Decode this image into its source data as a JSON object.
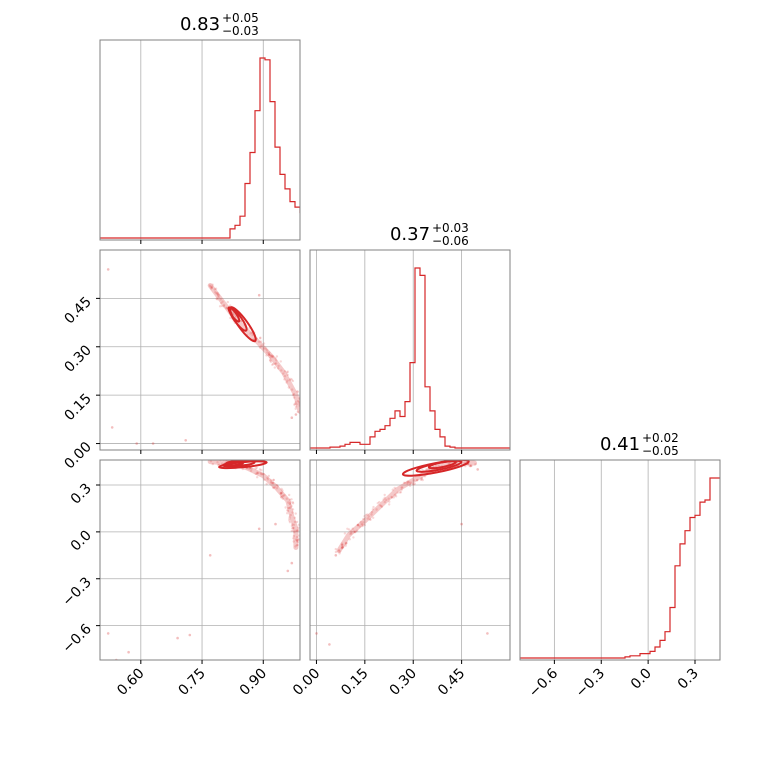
{
  "chart_data": {
    "type": "scatter",
    "subtype": "corner-plot",
    "color": "#d62728",
    "grid": true,
    "parameters": [
      {
        "median": "0.83",
        "plus": "+0.05",
        "minus": "−0.03"
      },
      {
        "median": "0.37",
        "plus": "+0.03",
        "minus": "−0.06"
      },
      {
        "median": "0.41",
        "plus": "+0.02",
        "minus": "−0.05"
      }
    ],
    "ranges": [
      [
        0.5,
        0.99
      ],
      [
        -0.02,
        0.6
      ],
      [
        -0.82,
        0.46
      ]
    ],
    "ticks": [
      [
        0.6,
        0.75,
        0.9
      ],
      [
        0.0,
        0.15,
        0.3,
        0.45
      ],
      [
        -0.6,
        -0.3,
        0.0,
        0.3
      ]
    ],
    "tick_labels": [
      [
        "0.60",
        "0.75",
        "0.90"
      ],
      [
        "0.00",
        "0.15",
        "0.30",
        "0.45"
      ],
      [
        "−0.6",
        "−0.3",
        "0.0",
        "0.3"
      ]
    ],
    "histograms": [
      {
        "bin_start": 0.5,
        "bin_width": 0.01225,
        "values": [
          0,
          0,
          0,
          0,
          0,
          0,
          0,
          0,
          0,
          0,
          0,
          0,
          0,
          0,
          0,
          0,
          0,
          0,
          0,
          0,
          0,
          0,
          0,
          0,
          0,
          0,
          0.05,
          0.07,
          0.12,
          0.3,
          0.47,
          0.7,
          0.99,
          0.98,
          0.75,
          0.5,
          0.35,
          0.27,
          0.2,
          0.17,
          0.14,
          0.12,
          0.1,
          0.05,
          0.03,
          0.02,
          0.05,
          0.07,
          0.07,
          0.09
        ]
      },
      {
        "bin_start": -0.02,
        "bin_width": 0.0155,
        "values": [
          0,
          0,
          0,
          0,
          0.005,
          0.005,
          0.01,
          0.02,
          0.03,
          0.03,
          0.02,
          0.02,
          0.06,
          0.09,
          0.1,
          0.12,
          0.16,
          0.2,
          0.17,
          0.25,
          0.46,
          0.97,
          0.93,
          0.33,
          0.2,
          0.1,
          0.06,
          0.01,
          0.005,
          0,
          0,
          0,
          0,
          0,
          0,
          0,
          0,
          0,
          0,
          0
        ]
      },
      {
        "bin_start": -0.82,
        "bin_width": 0.032,
        "values": [
          0,
          0,
          0,
          0,
          0,
          0,
          0,
          0,
          0,
          0,
          0,
          0,
          0,
          0,
          0,
          0,
          0,
          0,
          0,
          0,
          0,
          0.005,
          0.01,
          0.01,
          0.02,
          0.02,
          0.03,
          0.05,
          0.08,
          0.12,
          0.23,
          0.42,
          0.52,
          0.58,
          0.64,
          0.65,
          0.71,
          0.72,
          0.82,
          0.82
        ]
      }
    ],
    "pairs": [
      {
        "x_param": 0,
        "y_param": 1,
        "ridge": [
          [
            0.77,
            0.49
          ],
          [
            0.8,
            0.44
          ],
          [
            0.83,
            0.39
          ],
          [
            0.86,
            0.35
          ],
          [
            0.89,
            0.31
          ],
          [
            0.92,
            0.27
          ],
          [
            0.95,
            0.22
          ],
          [
            0.98,
            0.15
          ],
          [
            0.99,
            0.1
          ]
        ],
        "contours": [
          {
            "cx": 0.85,
            "cy": 0.37,
            "sx": 0.06,
            "sy": 0.012,
            "angle_deg": -60
          },
          {
            "cx": 0.838,
            "cy": 0.385,
            "sx": 0.04,
            "sy": 0.009,
            "angle_deg": -60
          },
          {
            "cx": 0.828,
            "cy": 0.4,
            "sx": 0.025,
            "sy": 0.006,
            "angle_deg": -60
          }
        ],
        "outliers": [
          [
            0.52,
            0.54
          ],
          [
            0.53,
            0.05
          ],
          [
            0.59,
            0.0
          ],
          [
            0.79,
            0.46
          ],
          [
            0.89,
            0.46
          ],
          [
            0.99,
            0.14
          ],
          [
            0.98,
            0.09
          ],
          [
            0.97,
            0.08
          ],
          [
            0.63,
            0.0
          ],
          [
            0.71,
            0.01
          ]
        ]
      },
      {
        "x_param": 0,
        "y_param": 2,
        "ridge": [
          [
            0.77,
            0.45
          ],
          [
            0.82,
            0.44
          ],
          [
            0.86,
            0.41
          ],
          [
            0.9,
            0.36
          ],
          [
            0.93,
            0.29
          ],
          [
            0.96,
            0.2
          ],
          [
            0.97,
            0.1
          ],
          [
            0.98,
            0.02
          ],
          [
            0.98,
            -0.1
          ]
        ],
        "contours": [
          {
            "cx": 0.85,
            "cy": 0.43,
            "sx": 0.06,
            "sy": 0.014,
            "angle_deg": 14
          },
          {
            "cx": 0.84,
            "cy": 0.435,
            "sx": 0.04,
            "sy": 0.01,
            "angle_deg": 14
          },
          {
            "cx": 0.83,
            "cy": 0.44,
            "sx": 0.022,
            "sy": 0.007,
            "angle_deg": 14
          }
        ],
        "outliers": [
          [
            0.52,
            -0.65
          ],
          [
            0.54,
            -0.82
          ],
          [
            0.57,
            -0.77
          ],
          [
            0.69,
            -0.68
          ],
          [
            0.72,
            -0.66
          ],
          [
            0.77,
            -0.15
          ],
          [
            0.89,
            0.02
          ],
          [
            0.96,
            -0.25
          ],
          [
            0.97,
            -0.2
          ],
          [
            0.93,
            0.05
          ]
        ]
      },
      {
        "x_param": 1,
        "y_param": 2,
        "ridge": [
          [
            0.07,
            -0.12
          ],
          [
            0.1,
            -0.02
          ],
          [
            0.15,
            0.07
          ],
          [
            0.2,
            0.17
          ],
          [
            0.25,
            0.27
          ],
          [
            0.3,
            0.33
          ],
          [
            0.35,
            0.39
          ],
          [
            0.4,
            0.43
          ],
          [
            0.45,
            0.45
          ],
          [
            0.49,
            0.44
          ]
        ],
        "contours": [
          {
            "cx": 0.37,
            "cy": 0.41,
            "sx": 0.11,
            "sy": 0.025,
            "angle_deg": 22
          },
          {
            "cx": 0.38,
            "cy": 0.42,
            "sx": 0.075,
            "sy": 0.018,
            "angle_deg": 22
          },
          {
            "cx": 0.39,
            "cy": 0.43,
            "sx": 0.045,
            "sy": 0.012,
            "angle_deg": 22
          }
        ],
        "outliers": [
          [
            0.0,
            -0.65
          ],
          [
            0.04,
            -0.72
          ],
          [
            0.06,
            -0.15
          ],
          [
            0.53,
            -0.65
          ],
          [
            0.45,
            0.05
          ],
          [
            0.5,
            0.4
          ],
          [
            0.12,
            0.0
          ],
          [
            0.08,
            -0.1
          ]
        ]
      }
    ]
  }
}
